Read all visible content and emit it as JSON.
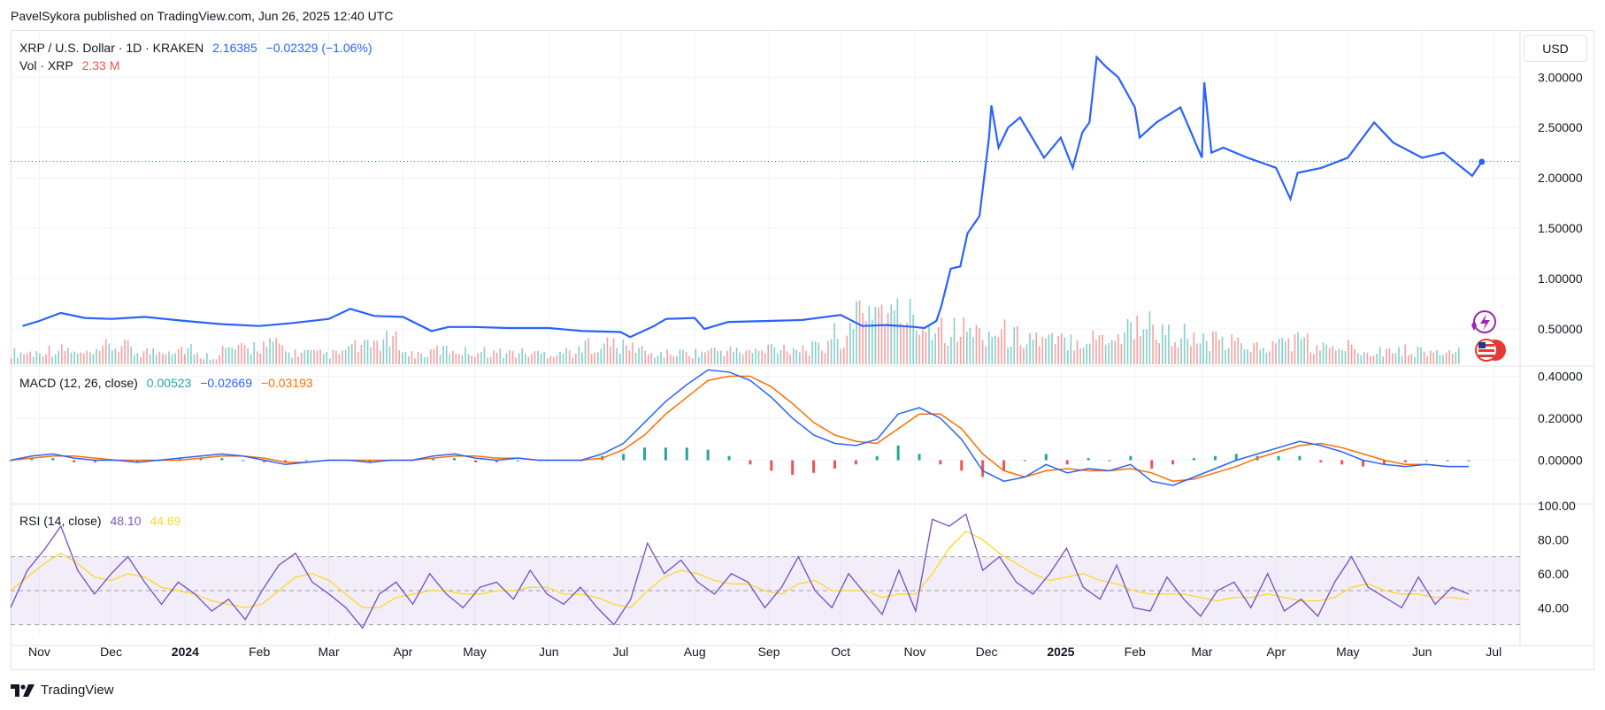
{
  "header": {
    "published": "PavelSykora published on TradingView.com, Jun 26, 2025 12:40 UTC"
  },
  "legend": {
    "symbol": "XRP / U.S. Dollar · 1D · KRAKEN",
    "last": "2.16385",
    "change": "−0.02329 (−1.06%)",
    "vol_label": "Vol · XRP",
    "vol_value": "2.33 M",
    "macd_label": "MACD (12, 26, close)",
    "macd_hist": "0.00523",
    "macd_line": "−0.02669",
    "macd_signal": "−0.03193",
    "rsi_label": "RSI (14, close)",
    "rsi_value": "48.10",
    "rsi_ma": "44.69"
  },
  "currency_button": "USD",
  "footer": {
    "brand": "TradingView"
  },
  "colors": {
    "price": "#2962ff",
    "macd": "#2962ff",
    "signal": "#ff6d00",
    "hist_up": "#26a69a",
    "hist_down": "#ef5350",
    "rsi": "#7e57c2",
    "rsi_ma": "#fdd835",
    "rsi_band": "#7e57c2"
  },
  "icons": [
    "flash-event-icon",
    "us-flag-icon"
  ],
  "chart_data": [
    {
      "type": "line",
      "name": "price",
      "x_axis_labels": [
        "Nov",
        "Dec",
        "2024",
        "Feb",
        "Mar",
        "Apr",
        "May",
        "Jun",
        "Jul",
        "Aug",
        "Sep",
        "Oct",
        "Nov",
        "Dec",
        "2025",
        "Feb",
        "Mar",
        "Apr",
        "May",
        "Jun",
        "Jul"
      ],
      "x": [
        "2023-10-25",
        "2023-11-01",
        "2023-11-10",
        "2023-11-20",
        "2023-12-01",
        "2023-12-15",
        "2024-01-01",
        "2024-01-15",
        "2024-02-01",
        "2024-02-15",
        "2024-03-01",
        "2024-03-10",
        "2024-03-20",
        "2024-04-01",
        "2024-04-13",
        "2024-04-20",
        "2024-05-01",
        "2024-05-15",
        "2024-06-01",
        "2024-06-15",
        "2024-07-01",
        "2024-07-05",
        "2024-07-15",
        "2024-07-20",
        "2024-08-01",
        "2024-08-05",
        "2024-08-15",
        "2024-09-01",
        "2024-09-15",
        "2024-10-01",
        "2024-10-10",
        "2024-10-20",
        "2024-11-01",
        "2024-11-05",
        "2024-11-10",
        "2024-11-12",
        "2024-11-16",
        "2024-11-20",
        "2024-11-23",
        "2024-11-28",
        "2024-12-02",
        "2024-12-03",
        "2024-12-06",
        "2024-12-10",
        "2024-12-15",
        "2024-12-20",
        "2024-12-25",
        "2025-01-01",
        "2025-01-06",
        "2025-01-10",
        "2025-01-13",
        "2025-01-16",
        "2025-01-20",
        "2025-01-25",
        "2025-02-01",
        "2025-02-03",
        "2025-02-10",
        "2025-02-20",
        "2025-03-01",
        "2025-03-02",
        "2025-03-05",
        "2025-03-10",
        "2025-03-20",
        "2025-04-01",
        "2025-04-07",
        "2025-04-10",
        "2025-04-20",
        "2025-05-01",
        "2025-05-12",
        "2025-05-20",
        "2025-06-01",
        "2025-06-10",
        "2025-06-22",
        "2025-06-26"
      ],
      "values": [
        0.53,
        0.58,
        0.66,
        0.61,
        0.6,
        0.62,
        0.58,
        0.55,
        0.53,
        0.56,
        0.6,
        0.7,
        0.63,
        0.62,
        0.48,
        0.52,
        0.52,
        0.51,
        0.51,
        0.48,
        0.47,
        0.42,
        0.53,
        0.6,
        0.61,
        0.5,
        0.57,
        0.58,
        0.59,
        0.64,
        0.53,
        0.54,
        0.52,
        0.51,
        0.58,
        0.72,
        1.1,
        1.12,
        1.45,
        1.62,
        2.4,
        2.72,
        2.3,
        2.5,
        2.6,
        2.4,
        2.2,
        2.4,
        2.1,
        2.45,
        2.55,
        3.2,
        3.1,
        3.0,
        2.7,
        2.4,
        2.55,
        2.7,
        2.2,
        2.95,
        2.25,
        2.3,
        2.2,
        2.1,
        1.79,
        2.05,
        2.1,
        2.2,
        2.55,
        2.35,
        2.2,
        2.25,
        2.02,
        2.16
      ],
      "last_value": 2.16385,
      "y_ticks": [
        "0.50000",
        "1.00000",
        "1.50000",
        "2.00000",
        "2.50000",
        "3.00000"
      ],
      "ylim": [
        0.15,
        3.45
      ]
    },
    {
      "type": "bar",
      "name": "Vol · XRP",
      "values_relative": [
        0.2,
        0.25,
        0.18,
        0.3,
        0.22,
        0.28,
        0.15,
        0.26,
        0.33,
        0.2,
        0.18,
        0.3,
        0.4,
        0.18,
        0.25,
        0.22,
        0.2,
        0.19,
        0.22,
        0.35,
        0.3,
        0.18,
        0.2,
        0.24,
        0.22,
        0.3,
        0.28,
        0.5,
        1.0,
        0.85,
        0.7,
        0.6,
        0.55,
        0.48,
        0.4,
        0.45,
        0.5,
        0.7,
        0.52,
        0.4,
        0.36,
        0.3,
        0.42,
        0.28,
        0.3,
        0.25,
        0.24,
        0.2,
        0.22
      ]
    },
    {
      "type": "line",
      "name": "MACD (12, 26, close)",
      "y_ticks": [
        "0.00000",
        "0.20000",
        "0.40000"
      ],
      "ylim": [
        -0.2,
        0.44
      ],
      "macd": [
        0.0,
        0.02,
        0.03,
        0.01,
        0.0,
        0.0,
        -0.01,
        0.0,
        0.01,
        0.02,
        0.03,
        0.02,
        0.0,
        -0.02,
        -0.01,
        0.0,
        0.0,
        -0.01,
        0.0,
        0.0,
        0.02,
        0.03,
        0.01,
        0.0,
        0.01,
        0.0,
        0.0,
        0.0,
        0.03,
        0.08,
        0.18,
        0.28,
        0.36,
        0.43,
        0.42,
        0.38,
        0.3,
        0.2,
        0.12,
        0.08,
        0.07,
        0.1,
        0.22,
        0.25,
        0.2,
        0.1,
        -0.05,
        -0.1,
        -0.08,
        -0.02,
        -0.06,
        -0.04,
        -0.05,
        -0.02,
        -0.1,
        -0.12,
        -0.08,
        -0.04,
        0.0,
        0.03,
        0.06,
        0.09,
        0.07,
        0.04,
        0.0,
        -0.02,
        -0.03,
        -0.02,
        -0.03,
        -0.03
      ],
      "signal": [
        0.0,
        0.01,
        0.02,
        0.02,
        0.01,
        0.0,
        0.0,
        0.0,
        0.0,
        0.01,
        0.02,
        0.02,
        0.01,
        -0.01,
        -0.01,
        0.0,
        0.0,
        0.0,
        0.0,
        0.0,
        0.01,
        0.02,
        0.02,
        0.01,
        0.01,
        0.0,
        0.0,
        0.0,
        0.01,
        0.05,
        0.12,
        0.22,
        0.3,
        0.38,
        0.4,
        0.4,
        0.35,
        0.27,
        0.18,
        0.12,
        0.09,
        0.08,
        0.15,
        0.22,
        0.22,
        0.15,
        0.03,
        -0.05,
        -0.08,
        -0.05,
        -0.04,
        -0.05,
        -0.05,
        -0.04,
        -0.06,
        -0.1,
        -0.09,
        -0.06,
        -0.03,
        0.01,
        0.04,
        0.07,
        0.08,
        0.06,
        0.03,
        0.0,
        -0.02,
        -0.02,
        -0.03,
        -0.03
      ]
    },
    {
      "type": "line",
      "name": "RSI (14, close)",
      "y_ticks": [
        "40.00",
        "60.00",
        "80.00",
        "100.00"
      ],
      "ylim": [
        24,
        100
      ],
      "band": [
        30,
        70
      ],
      "midline": 50,
      "rsi": [
        40,
        62,
        74,
        88,
        62,
        48,
        60,
        70,
        55,
        42,
        55,
        48,
        38,
        45,
        33,
        50,
        65,
        72,
        55,
        48,
        40,
        28,
        48,
        55,
        42,
        60,
        48,
        40,
        52,
        55,
        45,
        62,
        48,
        42,
        52,
        40,
        30,
        45,
        78,
        60,
        68,
        55,
        48,
        60,
        55,
        40,
        52,
        70,
        50,
        40,
        60,
        48,
        36,
        62,
        38,
        92,
        88,
        95,
        62,
        70,
        55,
        48,
        60,
        75,
        52,
        45,
        65,
        40,
        38,
        58,
        45,
        35,
        50,
        55,
        40,
        60,
        38,
        45,
        35,
        55,
        70,
        52,
        46,
        40,
        58,
        42,
        52,
        48
      ],
      "rsi_ma": [
        50,
        58,
        66,
        72,
        66,
        58,
        56,
        60,
        58,
        52,
        50,
        48,
        44,
        42,
        40,
        42,
        50,
        58,
        60,
        56,
        48,
        40,
        40,
        46,
        48,
        50,
        50,
        48,
        48,
        50,
        50,
        52,
        52,
        48,
        48,
        46,
        42,
        40,
        50,
        58,
        62,
        60,
        56,
        54,
        54,
        50,
        48,
        54,
        56,
        50,
        50,
        50,
        46,
        48,
        48,
        60,
        75,
        85,
        80,
        72,
        66,
        60,
        56,
        58,
        60,
        56,
        54,
        50,
        48,
        48,
        48,
        46,
        44,
        46,
        46,
        48,
        46,
        44,
        44,
        46,
        52,
        54,
        50,
        48,
        48,
        46,
        46,
        44.69
      ]
    }
  ]
}
